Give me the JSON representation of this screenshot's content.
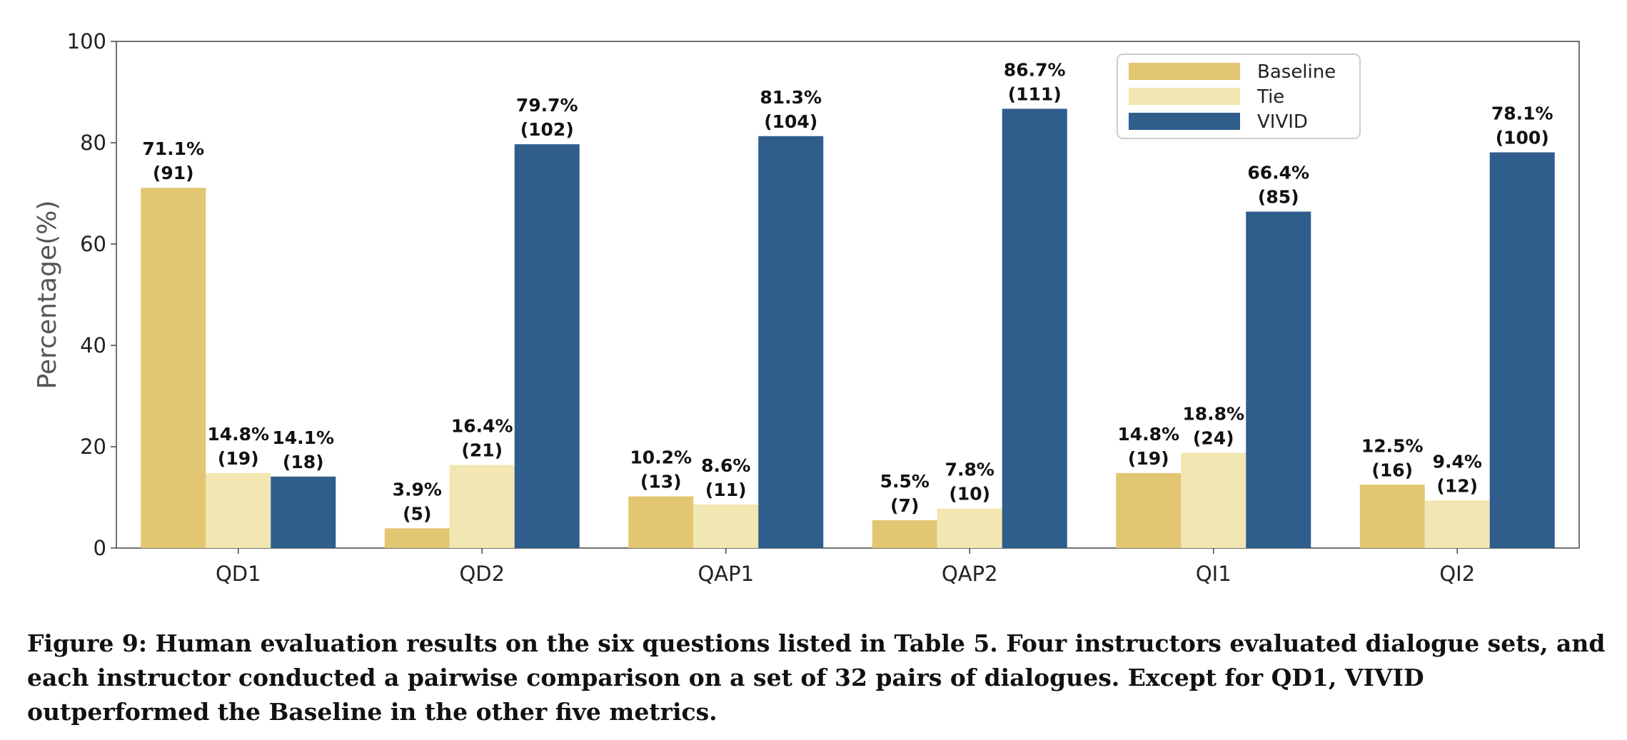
{
  "chart_data": {
    "type": "bar",
    "categories": [
      "QD1",
      "QD2",
      "QAP1",
      "QAP2",
      "QI1",
      "QI2"
    ],
    "series": [
      {
        "name": "Baseline",
        "color": "#E2C672",
        "values": [
          71.1,
          3.9,
          10.2,
          5.5,
          14.8,
          12.5
        ],
        "counts": [
          "(91)",
          "(5)",
          "(13)",
          "(7)",
          "(19)",
          "(16)"
        ],
        "labels": [
          "71.1%",
          "3.9%",
          "10.2%",
          "5.5%",
          "14.8%",
          "12.5%"
        ]
      },
      {
        "name": "Tie",
        "color": "#F2E6B2",
        "values": [
          14.8,
          16.4,
          8.6,
          7.8,
          18.8,
          9.4
        ],
        "counts": [
          "(19)",
          "(21)",
          "(11)",
          "(10)",
          "(24)",
          "(12)"
        ],
        "labels": [
          "14.8%",
          "16.4%",
          "8.6%",
          "7.8%",
          "18.8%",
          "9.4%"
        ]
      },
      {
        "name": "VIVID",
        "color": "#2F5D8C",
        "values": [
          14.1,
          79.7,
          81.3,
          86.7,
          66.4,
          78.1
        ],
        "counts": [
          "(18)",
          "(102)",
          "(104)",
          "(111)",
          "(85)",
          "(100)"
        ],
        "labels": [
          "14.1%",
          "79.7%",
          "81.3%",
          "86.7%",
          "66.4%",
          "78.1%"
        ]
      }
    ],
    "ylabel": "Percentage(%)",
    "ylim": [
      0,
      100
    ],
    "yticks": [
      "0",
      "20",
      "40",
      "60",
      "80",
      "100"
    ],
    "grid": false,
    "legend_position": "top-right"
  },
  "caption": "Figure 9: Human evaluation results on the six questions listed in Table 5. Four instructors evaluated dialogue sets, and each instructor conducted a pairwise comparison on a set of 32 pairs of dialogues. Except for QD1, VIVID outperformed the Baseline in the other five metrics."
}
